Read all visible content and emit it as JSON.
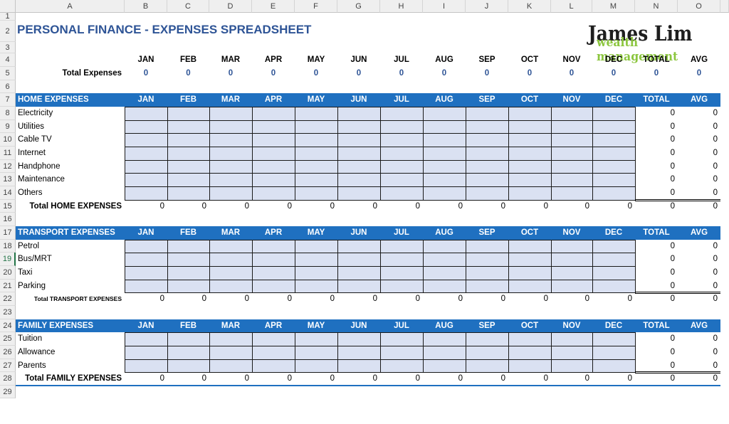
{
  "spreadsheet": {
    "title": "PERSONAL FINANCE - EXPENSES SPREADSHEET",
    "column_letters": [
      "A",
      "B",
      "C",
      "D",
      "E",
      "F",
      "G",
      "H",
      "I",
      "J",
      "K",
      "L",
      "M",
      "N",
      "O"
    ],
    "row_numbers": [
      "1",
      "2",
      "3",
      "4",
      "5",
      "6",
      "7",
      "8",
      "9",
      "10",
      "11",
      "12",
      "13",
      "14",
      "15",
      "16",
      "17",
      "18",
      "19",
      "20",
      "21",
      "22",
      "23",
      "24",
      "25",
      "26",
      "27",
      "28",
      "29"
    ],
    "selected_row": "19",
    "month_headers": [
      "JAN",
      "FEB",
      "MAR",
      "APR",
      "MAY",
      "JUN",
      "JUL",
      "AUG",
      "SEP",
      "OCT",
      "NOV",
      "DEC",
      "TOTAL",
      "AVG"
    ],
    "summary": {
      "label": "Total Expenses",
      "values": [
        "0",
        "0",
        "0",
        "0",
        "0",
        "0",
        "0",
        "0",
        "0",
        "0",
        "0",
        "0",
        "0",
        "0"
      ]
    },
    "sections": [
      {
        "title": "HOME EXPENSES",
        "items": [
          {
            "label": "Electricity",
            "total": "0",
            "avg": "0"
          },
          {
            "label": "Utilities",
            "total": "0",
            "avg": "0"
          },
          {
            "label": "Cable TV",
            "total": "0",
            "avg": "0"
          },
          {
            "label": "Internet",
            "total": "0",
            "avg": "0"
          },
          {
            "label": "Handphone",
            "total": "0",
            "avg": "0"
          },
          {
            "label": "Maintenance",
            "total": "0",
            "avg": "0"
          },
          {
            "label": "Others",
            "total": "0",
            "avg": "0"
          }
        ],
        "total_label": "Total HOME EXPENSES",
        "totals": [
          "0",
          "0",
          "0",
          "0",
          "0",
          "0",
          "0",
          "0",
          "0",
          "0",
          "0",
          "0",
          "0",
          "0"
        ]
      },
      {
        "title": "TRANSPORT EXPENSES",
        "items": [
          {
            "label": "Petrol",
            "total": "0",
            "avg": "0"
          },
          {
            "label": "Bus/MRT",
            "total": "0",
            "avg": "0"
          },
          {
            "label": "Taxi",
            "total": "0",
            "avg": "0"
          },
          {
            "label": "Parking",
            "total": "0",
            "avg": "0"
          }
        ],
        "total_label": "Total TRANSPORT EXPENSES",
        "totals": [
          "0",
          "0",
          "0",
          "0",
          "0",
          "0",
          "0",
          "0",
          "0",
          "0",
          "0",
          "0",
          "0",
          "0"
        ]
      },
      {
        "title": "FAMILY EXPENSES",
        "items": [
          {
            "label": "Tuition",
            "total": "0",
            "avg": "0"
          },
          {
            "label": "Allowance",
            "total": "0",
            "avg": "0"
          },
          {
            "label": "Parents",
            "total": "0",
            "avg": "0"
          }
        ],
        "total_label": "Total FAMILY EXPENSES",
        "totals": [
          "0",
          "0",
          "0",
          "0",
          "0",
          "0",
          "0",
          "0",
          "0",
          "0",
          "0",
          "0",
          "0",
          "0"
        ]
      }
    ]
  },
  "logo": {
    "name": "James Lim",
    "subtitle": "wealth management"
  },
  "colors": {
    "band": "#1f70c0",
    "input_fill": "#dae1f2",
    "title": "#2e5496",
    "logo_green": "#8cc63f"
  }
}
